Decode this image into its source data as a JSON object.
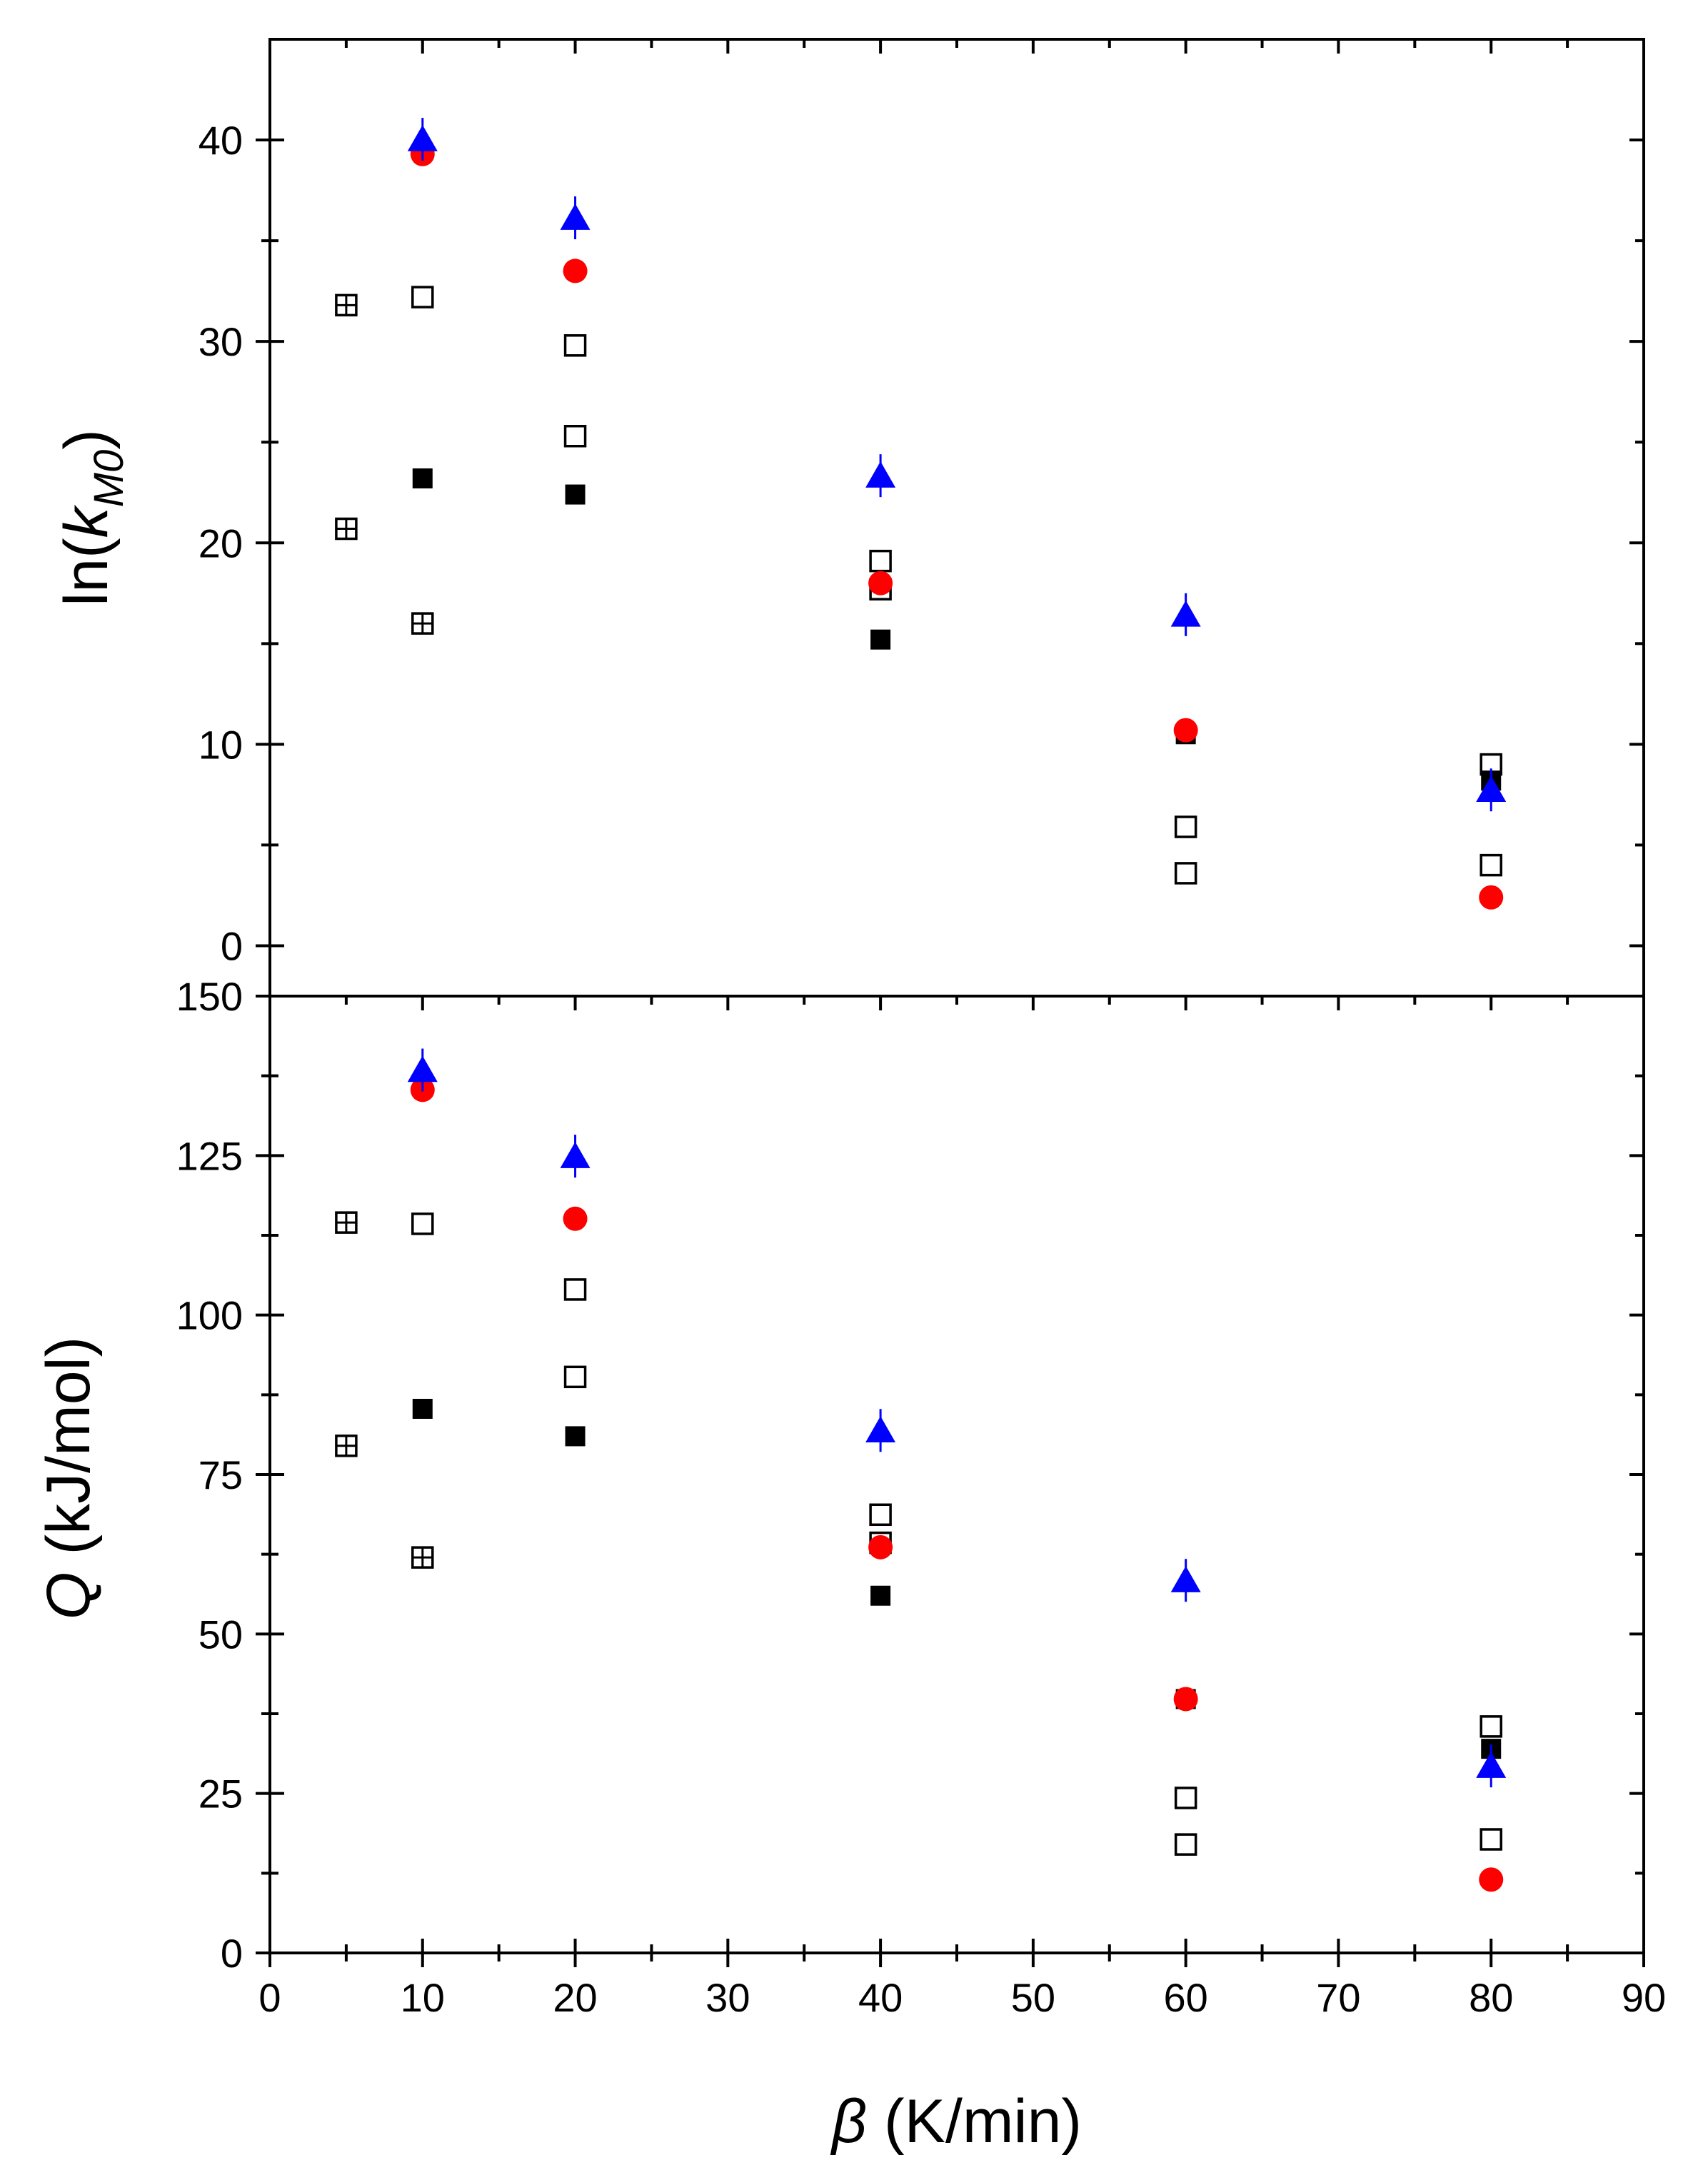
{
  "chart_data": [
    {
      "type": "scatter",
      "name": "top-panel",
      "ylabel_parts": {
        "prefix": "ln(",
        "var": "k",
        "sub": "M0",
        "suffix": ")"
      },
      "xlim": [
        0,
        90
      ],
      "ylim": [
        -2.5,
        45
      ],
      "y_ticks": [
        0,
        10,
        20,
        30,
        40
      ],
      "series": [
        {
          "name": "open-square",
          "marker": "square-open",
          "color": "#000000",
          "x": [
            10,
            20,
            20,
            40,
            40,
            60,
            60,
            80,
            80
          ],
          "y": [
            32.2,
            29.8,
            25.3,
            19.1,
            17.7,
            5.9,
            3.6,
            9.0,
            4.0
          ]
        },
        {
          "name": "grid-square",
          "marker": "square-grid",
          "color": "#000000",
          "x": [
            5,
            5,
            10
          ],
          "y": [
            31.8,
            20.7,
            16.0
          ]
        },
        {
          "name": "filled-square",
          "marker": "square-filled",
          "color": "#000000",
          "x": [
            10,
            20,
            40,
            60,
            80
          ],
          "y": [
            23.2,
            22.4,
            15.2,
            10.5,
            8.2
          ]
        },
        {
          "name": "red-circle",
          "marker": "circle-filled",
          "color": "#ff0000",
          "x": [
            10,
            20,
            40,
            60,
            80
          ],
          "y": [
            39.3,
            33.5,
            18.0,
            10.7,
            2.4
          ]
        },
        {
          "name": "blue-triangle",
          "marker": "triangle-filled",
          "color": "#0000ff",
          "x": [
            10,
            20,
            40,
            60,
            80
          ],
          "y": [
            40.0,
            36.1,
            23.3,
            16.4,
            7.7
          ]
        }
      ]
    },
    {
      "type": "scatter",
      "name": "bottom-panel",
      "ylabel_parts": {
        "prefix": "",
        "var": "Q",
        "sub": "",
        "suffix": " (kJ/mol)"
      },
      "xlim": [
        0,
        90
      ],
      "ylim": [
        0,
        150
      ],
      "y_ticks": [
        0,
        25,
        50,
        75,
        100,
        125,
        150
      ],
      "xlabel_parts": {
        "var": "β",
        "suffix": " (K/min)"
      },
      "x_ticks": [
        0,
        10,
        20,
        30,
        40,
        50,
        60,
        70,
        80,
        90
      ],
      "series": [
        {
          "name": "open-square",
          "marker": "square-open",
          "color": "#000000",
          "x": [
            10,
            20,
            20,
            40,
            40,
            60,
            60,
            80,
            80
          ],
          "y": [
            114.3,
            104.0,
            90.3,
            68.7,
            64.3,
            24.3,
            17.0,
            35.5,
            17.8
          ]
        },
        {
          "name": "grid-square",
          "marker": "square-grid",
          "color": "#000000",
          "x": [
            5,
            5,
            10
          ],
          "y": [
            114.5,
            79.5,
            62.0
          ]
        },
        {
          "name": "filled-square",
          "marker": "square-filled",
          "color": "#000000",
          "x": [
            10,
            20,
            40,
            60,
            80
          ],
          "y": [
            85.3,
            81.0,
            56.0,
            39.8,
            32.0
          ]
        },
        {
          "name": "red-circle",
          "marker": "circle-filled",
          "color": "#ff0000",
          "x": [
            10,
            20,
            40,
            60,
            80
          ],
          "y": [
            135.3,
            115.1,
            63.6,
            39.8,
            11.5
          ]
        },
        {
          "name": "blue-triangle",
          "marker": "triangle-filled",
          "color": "#0000ff",
          "x": [
            10,
            20,
            40,
            60,
            80
          ],
          "y": [
            138.3,
            124.8,
            81.8,
            58.3,
            29.2
          ]
        }
      ]
    }
  ]
}
